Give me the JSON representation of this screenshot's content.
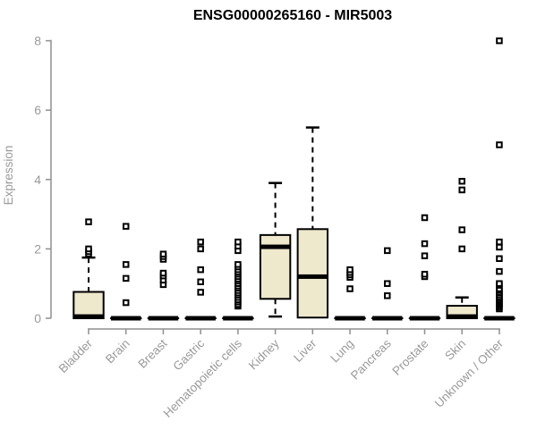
{
  "title": "ENSG00000265160 - MIR5003",
  "colors": {
    "background": "#ffffff",
    "box_fill": "#EEE8CD",
    "box_stroke": "#000000",
    "median": "#000000",
    "whisker": "#000000",
    "outlier_fill": "#ffffff",
    "outlier_stroke": "#000000",
    "axis_line": "#8f8f8f",
    "axis_text": "#9a9a9a",
    "title_text": "#000000"
  },
  "chart_data": {
    "type": "boxplot",
    "title": "ENSG00000265160 - MIR5003",
    "xlabel": "",
    "ylabel": "Expression",
    "ylim": [
      0,
      8
    ],
    "yticks": [
      0,
      2,
      4,
      6,
      8
    ],
    "grid": false,
    "legend": "none",
    "categories": [
      "Bladder",
      "Brain",
      "Breast",
      "Gastric",
      "Hematopoietic cells",
      "Kidney",
      "Liver",
      "Lung",
      "Pancreas",
      "Prostate",
      "Skin",
      "Unknown / Other"
    ],
    "series": [
      {
        "category": "Bladder",
        "q1": 0,
        "median": 0.05,
        "q3": 0.76,
        "whisker_low": 0,
        "whisker_high": 1.75,
        "outliers": [
          1.85,
          1.92,
          2.0,
          2.78
        ]
      },
      {
        "category": "Brain",
        "q1": 0,
        "median": 0,
        "q3": 0,
        "whisker_low": 0,
        "whisker_high": 0,
        "outliers": [
          0.45,
          1.15,
          1.55,
          2.65
        ]
      },
      {
        "category": "Breast",
        "q1": 0,
        "median": 0,
        "q3": 0,
        "whisker_low": 0,
        "whisker_high": 0,
        "outliers": [
          0.97,
          1.1,
          1.22,
          1.3,
          1.7,
          1.78,
          1.85
        ]
      },
      {
        "category": "Gastric",
        "q1": 0,
        "median": 0,
        "q3": 0,
        "whisker_low": 0,
        "whisker_high": 0,
        "outliers": [
          0.75,
          1.05,
          1.4,
          2.0,
          2.2
        ]
      },
      {
        "category": "Hematopoietic cells",
        "q1": 0,
        "median": 0,
        "q3": 0,
        "whisker_low": 0,
        "whisker_high": 0,
        "outliers": [
          0.35,
          0.4,
          0.47,
          0.53,
          0.6,
          0.67,
          0.73,
          0.8,
          0.87,
          0.93,
          1.0,
          1.07,
          1.13,
          1.2,
          1.27,
          1.33,
          1.4,
          1.48,
          1.55,
          1.95,
          2.08,
          2.2
        ]
      },
      {
        "category": "Kidney",
        "q1": 0.56,
        "median": 2.06,
        "q3": 2.4,
        "whisker_low": 0.05,
        "whisker_high": 3.9,
        "outliers": []
      },
      {
        "category": "Liver",
        "q1": 0.02,
        "median": 1.2,
        "q3": 2.57,
        "whisker_low": 0.02,
        "whisker_high": 5.5,
        "outliers": []
      },
      {
        "category": "Lung",
        "q1": 0,
        "median": 0,
        "q3": 0,
        "whisker_low": 0,
        "whisker_high": 0,
        "outliers": [
          0.85,
          1.18,
          1.25,
          1.32,
          1.4
        ]
      },
      {
        "category": "Pancreas",
        "q1": 0,
        "median": 0,
        "q3": 0,
        "whisker_low": 0,
        "whisker_high": 0,
        "outliers": [
          0.65,
          1.0,
          1.95
        ]
      },
      {
        "category": "Prostate",
        "q1": 0,
        "median": 0,
        "q3": 0,
        "whisker_low": 0,
        "whisker_high": 0,
        "outliers": [
          1.2,
          1.27,
          1.8,
          2.15,
          2.9
        ]
      },
      {
        "category": "Skin",
        "q1": 0,
        "median": 0.05,
        "q3": 0.36,
        "whisker_low": 0,
        "whisker_high": 0.6,
        "outliers": [
          2.0,
          2.55,
          3.7,
          3.95
        ]
      },
      {
        "category": "Unknown / Other",
        "q1": 0,
        "median": 0,
        "q3": 0,
        "whisker_low": 0,
        "whisker_high": 0,
        "outliers": [
          0.27,
          0.32,
          0.37,
          0.42,
          0.47,
          0.52,
          0.57,
          0.62,
          0.68,
          0.74,
          0.8,
          0.85,
          0.95,
          1.0,
          1.35,
          1.72,
          2.05,
          2.2,
          5.0,
          8.0
        ]
      }
    ]
  }
}
